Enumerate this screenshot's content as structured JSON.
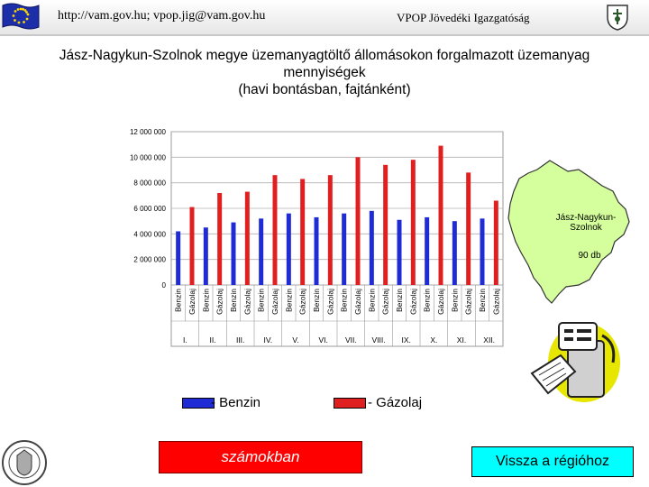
{
  "header": {
    "url": "http://vam.gov.hu; vpop.jig@vam.gov.hu",
    "org": "VPOP Jövedéki Igazgatóság"
  },
  "title": {
    "line1": "Jász-Nagykun-Szolnok megye üzemanyagtöltő állomásokon forgalmazott üzemanyag",
    "line2": "mennyiségek",
    "line3": "(havi bontásban, fajtánként)"
  },
  "chart_data": {
    "type": "bar",
    "categories": [
      "I.",
      "II.",
      "III.",
      "IV.",
      "V.",
      "VI.",
      "VII.",
      "VIII.",
      "IX.",
      "X.",
      "XI.",
      "XII."
    ],
    "bar_labels": [
      "Benzin",
      "Gázolaj"
    ],
    "series": [
      {
        "name": "Benzin",
        "color": "#1f2bd4",
        "values": [
          4200000,
          4500000,
          4900000,
          5200000,
          5600000,
          5300000,
          5600000,
          5800000,
          5100000,
          5300000,
          5000000,
          5200000
        ]
      },
      {
        "name": "Gázolaj",
        "color": "#e02020",
        "values": [
          6100000,
          7200000,
          7300000,
          8600000,
          8300000,
          8600000,
          10000000,
          9400000,
          9800000,
          10900000,
          8800000,
          6600000
        ]
      }
    ],
    "ylim": [
      0,
      12000000
    ],
    "yticks": [
      "12 000 000",
      "10 000 000",
      "8 000 000",
      "6 000 000",
      "4 000 000",
      "2 000 000",
      "0"
    ],
    "grid": true
  },
  "map": {
    "region": "Jász-Nagykun-Szolnok",
    "count": "90 db",
    "fill": "#d4ff9c"
  },
  "legend": {
    "benzin": "- Benzin",
    "gazolaj": "- Gázolaj"
  },
  "buttons": {
    "numbers": "számokban",
    "back": "Vissza a régióhoz"
  }
}
